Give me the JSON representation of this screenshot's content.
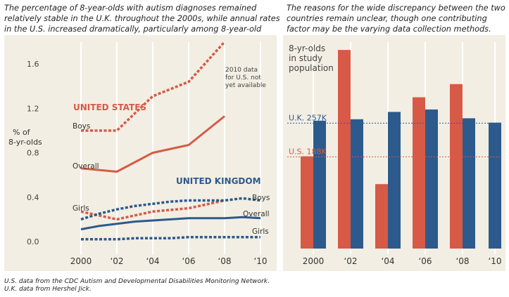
{
  "captions": {
    "left": "The percentage of 8-year-olds with autism diagnoses remained relatively stable in the U.K. throughout the 2000s, while annual rates in the U.S. increased dramatically, particularly among 8-year-old boys.",
    "right": "The reasons for the wide discrepancy between the two countries remain unclear, though one contributing factor may be the varying data collection methods."
  },
  "sources": {
    "line1": "U.S. data from the CDC Autism and Developmental Disabilities Monitoring Network.",
    "line2": "U.K. data from Hershel Jick."
  },
  "colors": {
    "us": "#d65a45",
    "uk": "#2c5a8c",
    "panel": "#f2eee3"
  },
  "chart_data": [
    {
      "type": "line",
      "ylabel_line1": "% of",
      "ylabel_line2": "8-yr-olds",
      "y_ticks": [
        "0.0",
        "0.4",
        "0.8",
        "1.2",
        "1.6"
      ],
      "x_ticks": [
        "2000",
        "‘02",
        "‘04",
        "‘06",
        "‘08",
        "‘10"
      ],
      "ylim": [
        0,
        1.8
      ],
      "xlim": [
        2000,
        2010
      ],
      "grid": "vertical",
      "labels": {
        "us_group": "UNITED STATES",
        "uk_group": "UNITED KINGDOM",
        "boys": "Boys",
        "overall": "Overall",
        "girls": "Girls",
        "note_l1": "2010 data",
        "note_l2": "for U.S. not",
        "note_l3": "yet available"
      },
      "series": [
        {
          "id": "us_boys",
          "x": [
            2000,
            2002,
            2004,
            2006,
            2008
          ],
          "y": [
            1.0,
            1.0,
            1.31,
            1.44,
            1.8
          ],
          "dashed": true,
          "color": "us"
        },
        {
          "id": "us_overall",
          "x": [
            2000,
            2002,
            2004,
            2006,
            2008
          ],
          "y": [
            0.66,
            0.63,
            0.8,
            0.87,
            1.13
          ],
          "dashed": false,
          "color": "us"
        },
        {
          "id": "us_girls",
          "x": [
            2000,
            2002,
            2004,
            2006,
            2008
          ],
          "y": [
            0.27,
            0.2,
            0.27,
            0.3,
            0.37
          ],
          "dashed": true,
          "color": "us"
        },
        {
          "id": "uk_boys",
          "x": [
            2000,
            2001,
            2002,
            2003,
            2004,
            2005,
            2006,
            2007,
            2008,
            2009,
            2010
          ],
          "y": [
            0.2,
            0.25,
            0.29,
            0.32,
            0.34,
            0.36,
            0.37,
            0.37,
            0.37,
            0.39,
            0.37
          ],
          "dashed": true,
          "color": "uk"
        },
        {
          "id": "uk_overall",
          "x": [
            2000,
            2001,
            2002,
            2003,
            2004,
            2005,
            2006,
            2007,
            2008,
            2009,
            2010
          ],
          "y": [
            0.11,
            0.14,
            0.16,
            0.18,
            0.19,
            0.2,
            0.21,
            0.21,
            0.21,
            0.22,
            0.21
          ],
          "dashed": false,
          "color": "uk"
        },
        {
          "id": "uk_girls",
          "x": [
            2000,
            2001,
            2002,
            2003,
            2004,
            2005,
            2006,
            2007,
            2008,
            2009,
            2010
          ],
          "y": [
            0.02,
            0.02,
            0.02,
            0.03,
            0.03,
            0.03,
            0.04,
            0.04,
            0.04,
            0.04,
            0.04
          ],
          "dashed": true,
          "color": "uk"
        }
      ]
    },
    {
      "type": "bar",
      "ylabel_line1": "8-yr-olds",
      "ylabel_line2": "in study",
      "ylabel_line3": "population",
      "x_ticks": [
        "2000",
        "‘02",
        "‘04",
        "‘06",
        "‘08",
        "‘10"
      ],
      "ylim": [
        0,
        390000
      ],
      "reference_lines": [
        {
          "label": "U.K. 257K",
          "value": 257000,
          "color": "uk"
        },
        {
          "label": "U.S. 188K",
          "value": 188000,
          "color": "us"
        }
      ],
      "bars": [
        {
          "x": 2000,
          "us": 189000,
          "uk": 262000
        },
        {
          "x": 2002,
          "us": 407000,
          "uk": 265000
        },
        {
          "x": 2004,
          "us": 132000,
          "uk": 280000
        },
        {
          "x": 2006,
          "us": 310000,
          "uk": 285000
        },
        {
          "x": 2008,
          "us": 337000,
          "uk": 267000
        },
        {
          "x": 2010,
          "uk": 258000
        }
      ]
    }
  ]
}
